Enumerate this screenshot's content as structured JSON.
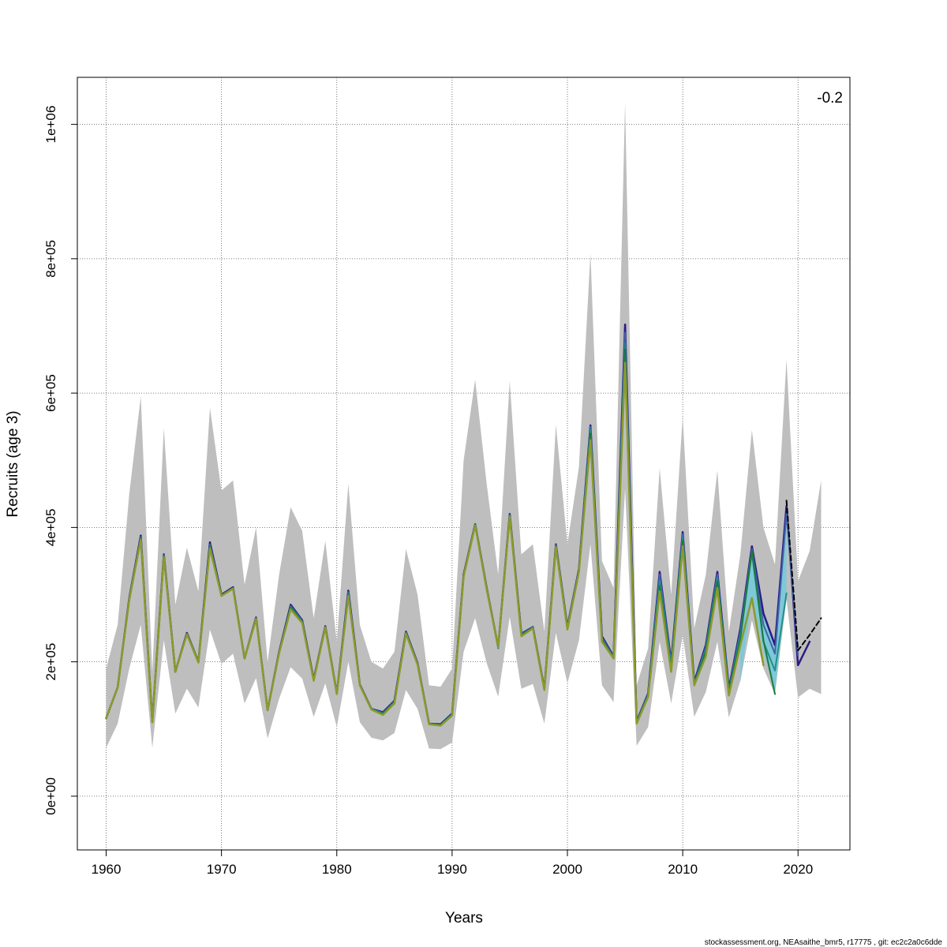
{
  "chart_data": {
    "type": "line",
    "title": "",
    "xlabel": "Years",
    "ylabel": "Recruits (age 3)",
    "xlim": [
      1957.5,
      2024.5
    ],
    "ylim": [
      -80000,
      1070000
    ],
    "x_ticks": [
      1960,
      1970,
      1980,
      1990,
      2000,
      2010,
      2020
    ],
    "y_ticks": [
      0,
      200000,
      400000,
      600000,
      800000,
      1000000
    ],
    "y_tick_labels": [
      "0e+00",
      "2e+05",
      "4e+05",
      "6e+05",
      "8e+05",
      "1e+06"
    ],
    "grid": true,
    "annotation": "-0.2",
    "footer": "stockassessment.org, NEAsaithe_bmr5, r17775 , git: ec2c2a0c6dde",
    "colors": {
      "band": "#bebebe",
      "retro_band": "#7ec8d8",
      "axis": "#000000",
      "grid": "#555555"
    },
    "confidence_band": {
      "x": [
        1960,
        1961,
        1962,
        1963,
        1964,
        1965,
        1966,
        1967,
        1968,
        1969,
        1970,
        1971,
        1972,
        1973,
        1974,
        1975,
        1976,
        1977,
        1978,
        1979,
        1980,
        1981,
        1982,
        1983,
        1984,
        1985,
        1986,
        1987,
        1988,
        1989,
        1990,
        1991,
        1992,
        1993,
        1994,
        1995,
        1996,
        1997,
        1998,
        1999,
        2000,
        2001,
        2002,
        2003,
        2004,
        2005,
        2006,
        2007,
        2008,
        2009,
        2010,
        2011,
        2012,
        2013,
        2014,
        2015,
        2016,
        2017,
        2018,
        2019,
        2020,
        2021,
        2022
      ],
      "upper": [
        190000,
        255000,
        450000,
        595000,
        185000,
        548000,
        285000,
        370000,
        305000,
        578000,
        455000,
        470000,
        315000,
        400000,
        200000,
        330000,
        430000,
        395000,
        265000,
        380000,
        230000,
        465000,
        255000,
        200000,
        190000,
        215000,
        368000,
        300000,
        165000,
        163000,
        190000,
        500000,
        620000,
        465000,
        330000,
        618000,
        360000,
        375000,
        245000,
        553000,
        375000,
        490000,
        808000,
        350000,
        310000,
        1033000,
        165000,
        220000,
        488000,
        300000,
        565000,
        250000,
        330000,
        485000,
        245000,
        360000,
        545000,
        400000,
        345000,
        650000,
        320000,
        365000,
        470000
      ],
      "lower": [
        72000,
        108000,
        190000,
        255000,
        72000,
        232000,
        123000,
        160000,
        132000,
        248000,
        197000,
        212000,
        138000,
        176000,
        86000,
        145000,
        192000,
        175000,
        118000,
        168000,
        103000,
        200000,
        110000,
        87000,
        83000,
        94000,
        158000,
        130000,
        71000,
        70000,
        80000,
        215000,
        265000,
        198000,
        148000,
        267000,
        160000,
        167000,
        108000,
        243000,
        168000,
        232000,
        375000,
        165000,
        140000,
        458000,
        75000,
        103000,
        230000,
        138000,
        240000,
        118000,
        155000,
        230000,
        117000,
        172000,
        262000,
        190000,
        152000,
        293000,
        147000,
        160000,
        152000
      ]
    },
    "retro_band": {
      "x": [
        2015,
        2016,
        2017,
        2018,
        2019
      ],
      "upper": [
        260000,
        372000,
        275000,
        230000,
        432000
      ],
      "lower": [
        170000,
        295000,
        215000,
        155000,
        305000
      ]
    },
    "series": [
      {
        "name": "",
        "color": "#2b1b86",
        "width": 2.5,
        "dash": "",
        "x": [
          1960,
          1961,
          1962,
          1963,
          1964,
          1965,
          1966,
          1967,
          1968,
          1969,
          1970,
          1971,
          1972,
          1973,
          1974,
          1975,
          1976,
          1977,
          1978,
          1979,
          1980,
          1981,
          1982,
          1983,
          1984,
          1985,
          1986,
          1987,
          1988,
          1989,
          1990,
          1991,
          1992,
          1993,
          1994,
          1995,
          1996,
          1997,
          1998,
          1999,
          2000,
          2001,
          2002,
          2003,
          2004,
          2005,
          2006,
          2007,
          2008,
          2009,
          2010,
          2011,
          2012,
          2013,
          2014,
          2015,
          2016,
          2017,
          2018,
          2019,
          2020,
          2021
        ],
        "y": [
          116000,
          162000,
          295000,
          388000,
          111000,
          360000,
          185000,
          243000,
          200000,
          378000,
          300000,
          311000,
          205000,
          266000,
          128000,
          215000,
          285000,
          262000,
          174000,
          253000,
          153000,
          306000,
          166000,
          130000,
          125000,
          142000,
          245000,
          198000,
          108000,
          107000,
          123000,
          330000,
          405000,
          310000,
          222000,
          420000,
          242000,
          252000,
          160000,
          375000,
          252000,
          338000,
          552000,
          238000,
          208000,
          702000,
          111000,
          153000,
          334000,
          200000,
          393000,
          170000,
          225000,
          334000,
          160000,
          250000,
          372000,
          272000,
          225000,
          432000,
          195000,
          230000
        ]
      },
      {
        "name": "",
        "color": "#3f64a8",
        "width": 2,
        "dash": "",
        "x": [
          1960,
          1961,
          1962,
          1963,
          1964,
          1965,
          1966,
          1967,
          1968,
          1969,
          1970,
          1971,
          1972,
          1973,
          1974,
          1975,
          1976,
          1977,
          1978,
          1979,
          1980,
          1981,
          1982,
          1983,
          1984,
          1985,
          1986,
          1987,
          1988,
          1989,
          1990,
          1991,
          1992,
          1993,
          1994,
          1995,
          1996,
          1997,
          1998,
          1999,
          2000,
          2001,
          2002,
          2003,
          2004,
          2005,
          2006,
          2007,
          2008,
          2009,
          2010,
          2011,
          2012,
          2013,
          2014,
          2015,
          2016,
          2017,
          2018,
          2019,
          2020
        ],
        "y": [
          116000,
          162000,
          294000,
          386000,
          110000,
          359000,
          185000,
          242000,
          200000,
          375000,
          299000,
          310000,
          205000,
          265000,
          128000,
          214000,
          283000,
          261000,
          173000,
          252000,
          153000,
          304000,
          165000,
          130000,
          124000,
          141000,
          244000,
          197000,
          108000,
          106000,
          122000,
          329000,
          405000,
          309000,
          220000,
          419000,
          241000,
          252000,
          159000,
          374000,
          251000,
          337000,
          550000,
          236000,
          207000,
          690000,
          110000,
          152000,
          330000,
          198000,
          390000,
          168000,
          222000,
          330000,
          158000,
          245000,
          368000,
          255000,
          212000,
          420000,
          210000
        ]
      },
      {
        "name": "",
        "color": "#20908c",
        "width": 2,
        "dash": "",
        "x": [
          1960,
          1961,
          1962,
          1963,
          1964,
          1965,
          1966,
          1967,
          1968,
          1969,
          1970,
          1971,
          1972,
          1973,
          1974,
          1975,
          1976,
          1977,
          1978,
          1979,
          1980,
          1981,
          1982,
          1983,
          1984,
          1985,
          1986,
          1987,
          1988,
          1989,
          1990,
          1991,
          1992,
          1993,
          1994,
          1995,
          1996,
          1997,
          1998,
          1999,
          2000,
          2001,
          2002,
          2003,
          2004,
          2005,
          2006,
          2007,
          2008,
          2009,
          2010,
          2011,
          2012,
          2013,
          2014,
          2015,
          2016,
          2017,
          2018,
          2019
        ],
        "y": [
          116000,
          162000,
          294000,
          385000,
          110000,
          358000,
          185000,
          242000,
          200000,
          373000,
          299000,
          310000,
          205000,
          265000,
          128000,
          214000,
          282000,
          260000,
          173000,
          252000,
          153000,
          302000,
          165000,
          130000,
          123000,
          140000,
          244000,
          197000,
          108000,
          106000,
          122000,
          329000,
          404000,
          309000,
          221000,
          418000,
          241000,
          251000,
          159000,
          373000,
          251000,
          336000,
          545000,
          234000,
          206000,
          675000,
          110000,
          151000,
          320000,
          195000,
          385000,
          167000,
          218000,
          325000,
          156000,
          240000,
          362000,
          230000,
          187000,
          302000
        ]
      },
      {
        "name": "",
        "color": "#1c7a3c",
        "width": 2,
        "dash": "",
        "x": [
          1960,
          1961,
          1962,
          1963,
          1964,
          1965,
          1966,
          1967,
          1968,
          1969,
          1970,
          1971,
          1972,
          1973,
          1974,
          1975,
          1976,
          1977,
          1978,
          1979,
          1980,
          1981,
          1982,
          1983,
          1984,
          1985,
          1986,
          1987,
          1988,
          1989,
          1990,
          1991,
          1992,
          1993,
          1994,
          1995,
          1996,
          1997,
          1998,
          1999,
          2000,
          2001,
          2002,
          2003,
          2004,
          2005,
          2006,
          2007,
          2008,
          2009,
          2010,
          2011,
          2012,
          2013,
          2014,
          2015,
          2016,
          2017,
          2018
        ],
        "y": [
          116000,
          162000,
          293000,
          384000,
          110000,
          357000,
          185000,
          242000,
          200000,
          372000,
          299000,
          310000,
          205000,
          264000,
          128000,
          213000,
          281000,
          259000,
          173000,
          251000,
          153000,
          300000,
          165000,
          129000,
          123000,
          139000,
          243000,
          196000,
          108000,
          106000,
          121000,
          328000,
          404000,
          308000,
          222000,
          417000,
          240000,
          251000,
          159000,
          372000,
          250000,
          335000,
          540000,
          233000,
          205000,
          665000,
          109000,
          150000,
          313000,
          190000,
          380000,
          166000,
          215000,
          320000,
          155000,
          235000,
          365000,
          232000,
          152000
        ]
      },
      {
        "name": "",
        "color": "#8a9a2c",
        "width": 2.5,
        "dash": "",
        "x": [
          1960,
          1961,
          1962,
          1963,
          1964,
          1965,
          1966,
          1967,
          1968,
          1969,
          1970,
          1971,
          1972,
          1973,
          1974,
          1975,
          1976,
          1977,
          1978,
          1979,
          1980,
          1981,
          1982,
          1983,
          1984,
          1985,
          1986,
          1987,
          1988,
          1989,
          1990,
          1991,
          1992,
          1993,
          1994,
          1995,
          1996,
          1997,
          1998,
          1999,
          2000,
          2001,
          2002,
          2003,
          2004,
          2005,
          2006,
          2007,
          2008,
          2009,
          2010,
          2011,
          2012,
          2013,
          2014,
          2015,
          2016,
          2017
        ],
        "y": [
          116000,
          162000,
          292000,
          382000,
          110000,
          356000,
          185000,
          241000,
          199000,
          369000,
          298000,
          309000,
          205000,
          264000,
          128000,
          213000,
          278000,
          258000,
          172000,
          251000,
          152000,
          298000,
          165000,
          129000,
          121000,
          138000,
          242000,
          196000,
          107000,
          105000,
          120000,
          327000,
          403000,
          308000,
          222000,
          416000,
          238000,
          250000,
          158000,
          371000,
          248000,
          334000,
          530000,
          230000,
          205000,
          645000,
          108000,
          148000,
          305000,
          185000,
          372000,
          165000,
          208000,
          310000,
          150000,
          225000,
          295000,
          195000
        ]
      },
      {
        "name": "",
        "color": "#000000",
        "width": 2,
        "dash": "6,4",
        "x": [
          2019,
          2020,
          2021,
          2022
        ],
        "y": [
          440000,
          217000,
          240000,
          265000
        ]
      }
    ]
  }
}
